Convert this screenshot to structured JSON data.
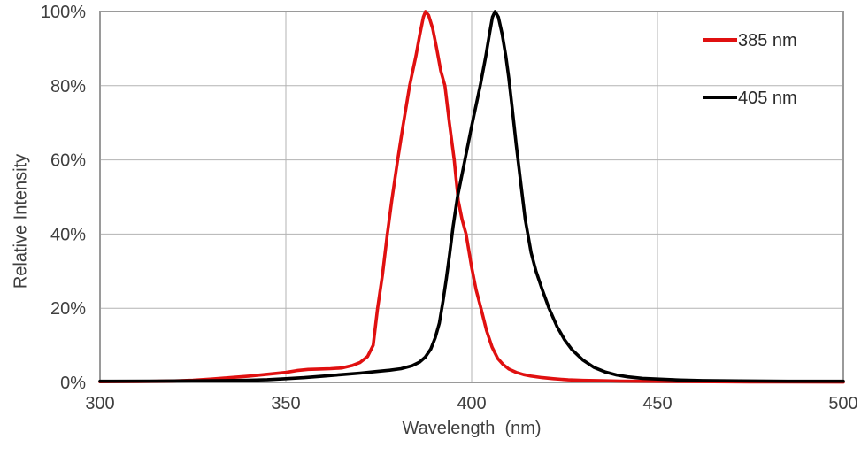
{
  "chart_data": {
    "type": "line",
    "title": "",
    "xlabel": "Wavelength  (nm)",
    "ylabel": "Relative Intensity",
    "xlim": [
      300,
      500
    ],
    "ylim": [
      0,
      100
    ],
    "x_ticks": [
      300,
      350,
      400,
      450,
      500
    ],
    "y_ticks": [
      {
        "value": 0,
        "label": "0%"
      },
      {
        "value": 20,
        "label": "20%"
      },
      {
        "value": 40,
        "label": "40%"
      },
      {
        "value": 60,
        "label": "60%"
      },
      {
        "value": 80,
        "label": "80%"
      },
      {
        "value": 100,
        "label": "100%"
      }
    ],
    "grid": true,
    "legend_position": "top-right-inside",
    "series": [
      {
        "name": "385 nm",
        "color": "#e01010",
        "points": [
          [
            300,
            0.2
          ],
          [
            310,
            0.25
          ],
          [
            320,
            0.4
          ],
          [
            325,
            0.6
          ],
          [
            330,
            0.9
          ],
          [
            335,
            1.3
          ],
          [
            340,
            1.7
          ],
          [
            345,
            2.2
          ],
          [
            350,
            2.7
          ],
          [
            353,
            3.2
          ],
          [
            356,
            3.5
          ],
          [
            359,
            3.6
          ],
          [
            362,
            3.7
          ],
          [
            365,
            3.9
          ],
          [
            368,
            4.6
          ],
          [
            370,
            5.4
          ],
          [
            372,
            7
          ],
          [
            373.5,
            10
          ],
          [
            374.7,
            20
          ],
          [
            376,
            29
          ],
          [
            377.3,
            40
          ],
          [
            378.5,
            49
          ],
          [
            380.1,
            60
          ],
          [
            381.5,
            69
          ],
          [
            383.3,
            80
          ],
          [
            385,
            88
          ],
          [
            386,
            93.5
          ],
          [
            387,
            98.5
          ],
          [
            387.6,
            100
          ],
          [
            388.4,
            99
          ],
          [
            389.5,
            95.5
          ],
          [
            390.5,
            90.5
          ],
          [
            391.7,
            84
          ],
          [
            392.8,
            80
          ],
          [
            394,
            70
          ],
          [
            395.3,
            60
          ],
          [
            396.4,
            49
          ],
          [
            397.4,
            44
          ],
          [
            398.5,
            40
          ],
          [
            400,
            31
          ],
          [
            401.2,
            25
          ],
          [
            402.5,
            20
          ],
          [
            404,
            14
          ],
          [
            405.5,
            9.5
          ],
          [
            407,
            6.5
          ],
          [
            408.5,
            4.8
          ],
          [
            410,
            3.6
          ],
          [
            412,
            2.7
          ],
          [
            414,
            2.1
          ],
          [
            416,
            1.7
          ],
          [
            419,
            1.3
          ],
          [
            422,
            1
          ],
          [
            426,
            0.7
          ],
          [
            430,
            0.55
          ],
          [
            435,
            0.45
          ],
          [
            440,
            0.35
          ],
          [
            450,
            0.28
          ],
          [
            460,
            0.22
          ],
          [
            475,
            0.15
          ],
          [
            500,
            0.1
          ]
        ]
      },
      {
        "name": "405 nm",
        "color": "#000000",
        "points": [
          [
            300,
            0.3
          ],
          [
            315,
            0.35
          ],
          [
            330,
            0.45
          ],
          [
            340,
            0.6
          ],
          [
            345,
            0.75
          ],
          [
            350,
            1
          ],
          [
            355,
            1.3
          ],
          [
            360,
            1.7
          ],
          [
            365,
            2.1
          ],
          [
            370,
            2.5
          ],
          [
            374,
            2.9
          ],
          [
            378,
            3.3
          ],
          [
            381,
            3.7
          ],
          [
            384,
            4.5
          ],
          [
            386,
            5.5
          ],
          [
            387.5,
            6.8
          ],
          [
            389,
            9
          ],
          [
            390.2,
            12
          ],
          [
            391.3,
            16
          ],
          [
            392.3,
            22
          ],
          [
            393.2,
            28
          ],
          [
            394,
            34
          ],
          [
            395,
            42
          ],
          [
            396.2,
            50
          ],
          [
            397.2,
            55
          ],
          [
            398.2,
            60
          ],
          [
            400.2,
            70
          ],
          [
            402.3,
            80
          ],
          [
            403.8,
            88
          ],
          [
            404.8,
            94
          ],
          [
            405.6,
            98.5
          ],
          [
            406.3,
            100
          ],
          [
            407.2,
            98.5
          ],
          [
            408.2,
            94
          ],
          [
            409.2,
            88
          ],
          [
            410,
            82
          ],
          [
            410.9,
            74
          ],
          [
            412,
            64
          ],
          [
            413.2,
            54
          ],
          [
            414.4,
            44
          ],
          [
            416,
            35
          ],
          [
            417.3,
            30
          ],
          [
            419,
            25
          ],
          [
            420.8,
            20
          ],
          [
            423,
            15
          ],
          [
            425,
            11.5
          ],
          [
            427,
            8.8
          ],
          [
            430,
            6
          ],
          [
            433,
            4
          ],
          [
            436,
            2.8
          ],
          [
            439,
            2
          ],
          [
            442,
            1.5
          ],
          [
            446,
            1.1
          ],
          [
            450,
            0.9
          ],
          [
            456,
            0.65
          ],
          [
            462,
            0.5
          ],
          [
            472,
            0.4
          ],
          [
            485,
            0.3
          ],
          [
            500,
            0.3
          ]
        ]
      }
    ]
  },
  "style": {
    "grid_color": "#b3b3b3",
    "frame_color": "#9a9a9a",
    "text_color": "#3f3f3f",
    "background": "#ffffff"
  }
}
